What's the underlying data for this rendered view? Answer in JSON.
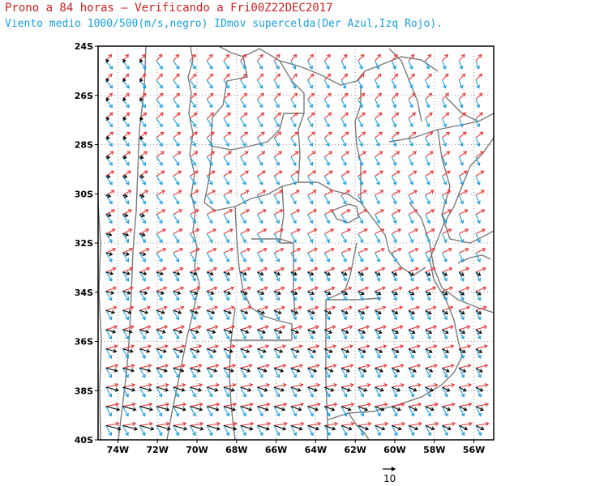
{
  "header": {
    "title": "Prono a 84 horas — Verificando a Fri00Z22DEC2017",
    "subtitle": "Viento medio 1000/500(m/s,negro) IDmov supercelda(Der Azul,Izq Rojo)."
  },
  "map": {
    "lat_labels": [
      "24S",
      "26S",
      "28S",
      "30S",
      "32S",
      "34S",
      "36S",
      "38S",
      "40S"
    ],
    "lon_labels": [
      "74W",
      "72W",
      "70W",
      "68W",
      "66W",
      "64W",
      "62W",
      "60W",
      "58W",
      "56W"
    ],
    "lat_range": [
      -40,
      -24
    ],
    "lon_range": [
      -75,
      -55
    ],
    "grid": "dotted",
    "colors": {
      "mean_wind": "#000000",
      "right_mover": "#1a9fe0",
      "left_mover": "#e83a3a",
      "borders": "#7a7a7a"
    }
  },
  "reference_vector": {
    "label": "10",
    "speed": 10
  }
}
